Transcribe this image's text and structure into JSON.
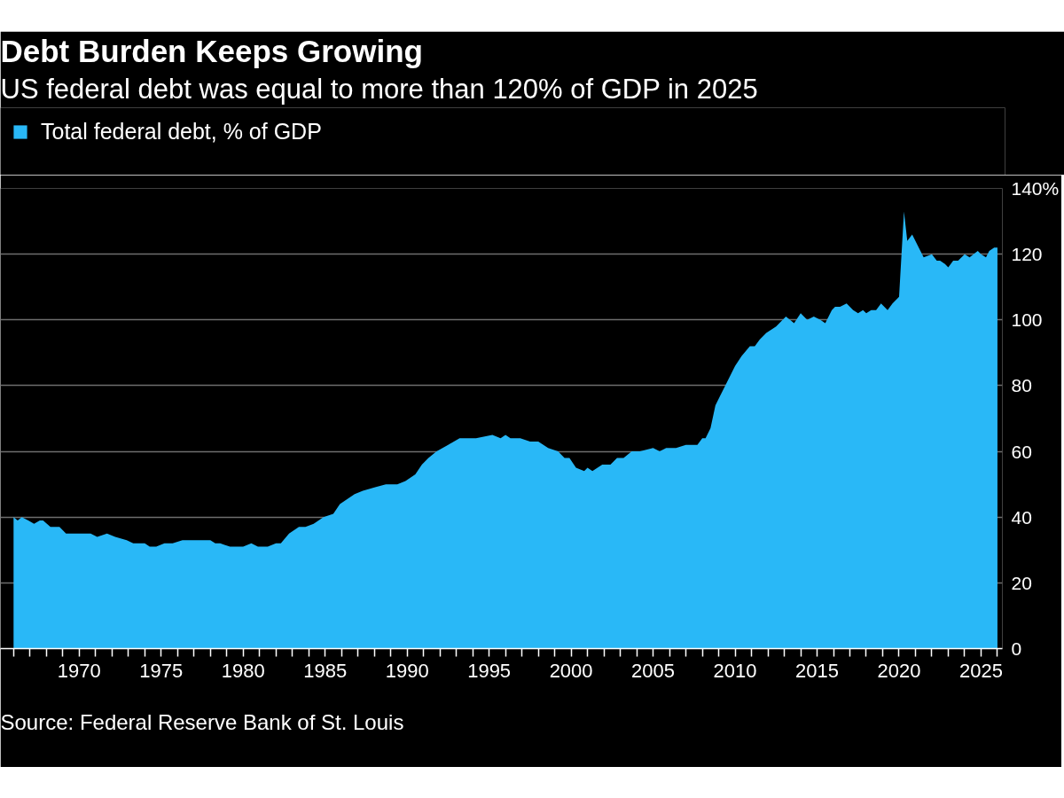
{
  "chart_data": {
    "type": "area",
    "title": "Debt Burden Keeps Growing",
    "subtitle": "US federal debt was equal to more than 120% of GDP in 2025",
    "x": [
      1966.0,
      1966.25,
      1966.5,
      1966.9,
      1967.25,
      1967.6,
      1967.8,
      1968.25,
      1968.5,
      1968.8,
      1969.2,
      1969.8,
      1970.3,
      1970.7,
      1971.1,
      1971.7,
      1972.2,
      1972.9,
      1973.3,
      1974.0,
      1974.3,
      1974.7,
      1975.2,
      1975.7,
      1976.3,
      1976.8,
      1977.3,
      1978.0,
      1978.3,
      1978.6,
      1979.2,
      1980.0,
      1980.5,
      1980.9,
      1981.5,
      1982.0,
      1982.3,
      1982.8,
      1983.4,
      1983.8,
      1984.3,
      1984.9,
      1985.5,
      1985.9,
      1986.2,
      1986.8,
      1987.3,
      1988.0,
      1988.7,
      1989.4,
      1989.9,
      1990.5,
      1990.9,
      1991.3,
      1991.8,
      1992.5,
      1993.2,
      1993.7,
      1994.2,
      1995.2,
      1995.7,
      1996.0,
      1996.3,
      1996.9,
      1997.5,
      1998.0,
      1998.6,
      1999.2,
      1999.6,
      1999.9,
      2000.3,
      2000.8,
      2001.0,
      2001.3,
      2001.9,
      2002.4,
      2002.8,
      2003.2,
      2003.7,
      2004.2,
      2005.0,
      2005.4,
      2005.8,
      2006.4,
      2007.0,
      2007.3,
      2007.7,
      2008.0,
      2008.2,
      2008.5,
      2008.8,
      2009.1,
      2009.4,
      2010.0,
      2010.4,
      2010.9,
      2011.2,
      2011.5,
      2011.9,
      2012.5,
      2012.9,
      2013.1,
      2013.6,
      2014.0,
      2014.4,
      2014.8,
      2015.2,
      2015.5,
      2015.9,
      2016.1,
      2016.4,
      2016.8,
      2017.2,
      2017.5,
      2017.8,
      2018.0,
      2018.3,
      2018.6,
      2018.9,
      2019.3,
      2019.6,
      2020.0,
      2020.3,
      2020.5,
      2020.8,
      2021.2,
      2021.5,
      2022.0,
      2022.3,
      2022.5,
      2022.8,
      2023.0,
      2023.3,
      2023.6,
      2024.0,
      2024.3,
      2024.8,
      2025.0,
      2025.3,
      2025.5,
      2025.8,
      2026.0
    ],
    "series": [
      {
        "name": "Total federal debt, % of GDP",
        "color": "#29b8f7",
        "values": [
          40,
          39,
          40,
          39,
          38,
          39,
          39,
          37,
          37,
          37,
          35,
          35,
          35,
          35,
          34,
          35,
          34,
          33,
          32,
          32,
          31,
          31,
          32,
          32,
          33,
          33,
          33,
          33,
          32,
          32,
          31,
          31,
          32,
          31,
          31,
          32,
          32,
          35,
          37,
          37,
          38,
          40,
          41,
          44,
          45,
          47,
          48,
          49,
          50,
          50,
          51,
          53,
          56,
          58,
          60,
          62,
          64,
          64,
          64,
          65,
          64,
          65,
          64,
          64,
          63,
          63,
          61,
          60,
          58,
          58,
          55,
          54,
          55,
          54,
          56,
          56,
          58,
          58,
          60,
          60,
          61,
          60,
          61,
          61,
          62,
          62,
          62,
          64,
          64,
          67,
          74,
          77,
          80,
          86,
          89,
          92,
          92,
          94,
          96,
          98,
          100,
          101,
          99,
          102,
          100,
          101,
          100,
          99,
          103,
          104,
          104,
          105,
          103,
          102,
          103,
          102,
          103,
          103,
          105,
          103,
          105,
          107,
          133,
          124,
          126,
          122,
          119,
          120,
          118,
          118,
          117,
          116,
          118,
          118,
          120,
          119,
          121,
          120,
          119,
          121,
          122,
          122
        ]
      }
    ],
    "xlim": [
      1965.2,
      2026.3
    ],
    "xticks": [
      {
        "value": 1966,
        "label": null
      },
      {
        "value": 1967,
        "label": null
      },
      {
        "value": 1968,
        "label": null
      },
      {
        "value": 1969,
        "label": null
      },
      1970,
      {
        "value": 1971,
        "label": null
      },
      {
        "value": 1972,
        "label": null
      },
      {
        "value": 1973,
        "label": null
      },
      {
        "value": 1974,
        "label": null
      },
      1975,
      {
        "value": 1976,
        "label": null
      },
      {
        "value": 1977,
        "label": null
      },
      {
        "value": 1978,
        "label": null
      },
      {
        "value": 1979,
        "label": null
      },
      1980,
      {
        "value": 1981,
        "label": null
      },
      {
        "value": 1982,
        "label": null
      },
      {
        "value": 1983,
        "label": null
      },
      {
        "value": 1984,
        "label": null
      },
      1985,
      {
        "value": 1986,
        "label": null
      },
      {
        "value": 1987,
        "label": null
      },
      {
        "value": 1988,
        "label": null
      },
      {
        "value": 1989,
        "label": null
      },
      1990,
      {
        "value": 1991,
        "label": null
      },
      {
        "value": 1992,
        "label": null
      },
      {
        "value": 1993,
        "label": null
      },
      {
        "value": 1994,
        "label": null
      },
      1995,
      {
        "value": 1996,
        "label": null
      },
      {
        "value": 1997,
        "label": null
      },
      {
        "value": 1998,
        "label": null
      },
      {
        "value": 1999,
        "label": null
      },
      2000,
      {
        "value": 2001,
        "label": null
      },
      {
        "value": 2002,
        "label": null
      },
      {
        "value": 2003,
        "label": null
      },
      {
        "value": 2004,
        "label": null
      },
      2005,
      {
        "value": 2006,
        "label": null
      },
      {
        "value": 2007,
        "label": null
      },
      {
        "value": 2008,
        "label": null
      },
      {
        "value": 2009,
        "label": null
      },
      2010,
      {
        "value": 2011,
        "label": null
      },
      {
        "value": 2012,
        "label": null
      },
      {
        "value": 2013,
        "label": null
      },
      {
        "value": 2014,
        "label": null
      },
      2015,
      {
        "value": 2016,
        "label": null
      },
      {
        "value": 2017,
        "label": null
      },
      {
        "value": 2018,
        "label": null
      },
      {
        "value": 2019,
        "label": null
      },
      2020,
      {
        "value": 2021,
        "label": null
      },
      {
        "value": 2022,
        "label": null
      },
      {
        "value": 2023,
        "label": null
      },
      {
        "value": 2024,
        "label": null
      },
      2025,
      {
        "value": 2026,
        "label": null
      }
    ],
    "ylim": [
      0,
      140
    ],
    "yticks": [
      0,
      20,
      40,
      60,
      80,
      100,
      120,
      {
        "value": 140,
        "label": "140%"
      }
    ],
    "grid": "y",
    "legend": "top left",
    "annotations": [
      "Source: Federal Reserve Bank of St. Louis"
    ]
  }
}
